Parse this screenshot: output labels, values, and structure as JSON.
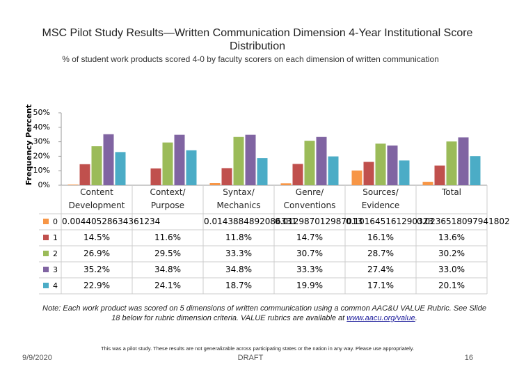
{
  "chart_data": {
    "type": "bar",
    "title": "MSC Pilot Study Results—Written Communication Dimension 4-Year Institutional Score Distribution",
    "subtitle": "% of student work products scored 4-0 by faculty scorers on each dimension of written communication",
    "y_label": "Frequency Percent",
    "categories": [
      "Content Development",
      "Context/ Purpose",
      "Syntax/ Mechanics",
      "Genre/ Conventions",
      "Sources/ Evidence",
      "Total"
    ],
    "ylim": [
      0,
      50
    ],
    "yticks": [
      {
        "value": 0,
        "label": "0%"
      },
      {
        "value": 10,
        "label": "10%"
      },
      {
        "value": 20,
        "label": "20%"
      },
      {
        "value": 30,
        "label": "30%"
      },
      {
        "value": 40,
        "label": "40%"
      },
      {
        "value": 50,
        "label": "50%"
      }
    ],
    "series": [
      {
        "name": "0",
        "color": "#f79646",
        "values": [
          0.440528634361234,
          null,
          1.43884892086331,
          1.2987012987013,
          10.1645161290323,
          2.36518097941802
        ],
        "value_labels": [
          "0.00440528634361234",
          null,
          "0.0143884892086331",
          "0.012987012987013",
          "0.101645161290323",
          "0.0236518097941802"
        ]
      },
      {
        "name": "1",
        "color": "#c0504d",
        "values": [
          14.5,
          11.6,
          11.8,
          14.7,
          16.1,
          13.6
        ],
        "value_labels": [
          "14.5%",
          "11.6%",
          "11.8%",
          "14.7%",
          "16.1%",
          "13.6%"
        ]
      },
      {
        "name": "2",
        "color": "#9bbb59",
        "values": [
          26.9,
          29.5,
          33.3,
          30.7,
          28.7,
          30.2
        ],
        "value_labels": [
          "26.9%",
          "29.5%",
          "33.3%",
          "30.7%",
          "28.7%",
          "30.2%"
        ]
      },
      {
        "name": "3",
        "color": "#8064a2",
        "values": [
          35.2,
          34.8,
          34.8,
          33.3,
          27.4,
          33.0
        ],
        "value_labels": [
          "35.2%",
          "34.8%",
          "34.8%",
          "33.3%",
          "27.4%",
          "33.0%"
        ]
      },
      {
        "name": "4",
        "color": "#4bacc6",
        "values": [
          22.9,
          24.1,
          18.7,
          19.9,
          17.1,
          20.1
        ],
        "value_labels": [
          "22.9%",
          "24.1%",
          "18.7%",
          "19.9%",
          "17.1%",
          "20.1%"
        ]
      }
    ],
    "note": "Note: Each work product was scored on 5 dimensions of written communication using a common AAC&U VALUE Rubric. See Slide 18 below for rubric dimension criteria. VALUE rubrics are available at ",
    "note_link": "www.aacu.org/value",
    "note_end": ".",
    "disclaimer": "This was a pilot study. These results are not generalizable across participating states or the nation in any way. Please use appropriately.",
    "date": "9/9/2020",
    "footer": "DRAFT",
    "page": "16"
  }
}
